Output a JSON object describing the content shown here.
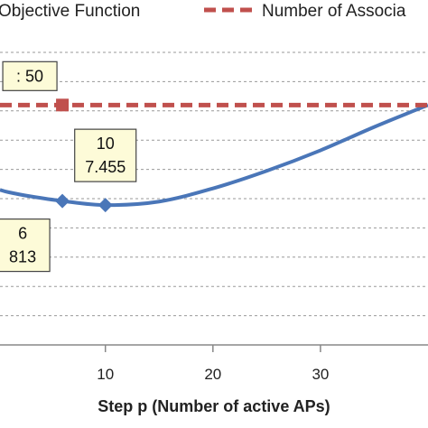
{
  "chart_data": {
    "type": "line",
    "xlabel": "Step p (Number of active APs)",
    "xticks": [
      "10",
      "20",
      "30"
    ],
    "xlim": [
      0.2,
      40
    ],
    "ylim": [
      0,
      10
    ],
    "grid": true,
    "legend_position": "top",
    "series": [
      {
        "name": "Objective Function",
        "color": "#4a76b8",
        "style": "solid",
        "x": [
          0.2,
          1,
          3,
          6,
          10,
          15,
          20,
          25,
          30,
          35,
          40
        ],
        "y": [
          5.3,
          5.22,
          5.08,
          4.92,
          4.78,
          4.9,
          5.35,
          5.95,
          6.65,
          7.45,
          8.2
        ],
        "markers_at": [
          6,
          10
        ]
      },
      {
        "name": "Number of Associa",
        "color": "#c0504d",
        "style": "dashed",
        "x": [
          0.2,
          40
        ],
        "y": [
          8.2,
          8.2
        ],
        "markers_at": [
          6
        ]
      }
    ],
    "annotations": [
      {
        "lines": [
          "10",
          "7.455"
        ],
        "x": 10,
        "y": 4.78,
        "series": 0
      },
      {
        "lines": [
          "6",
          "813"
        ],
        "x": 6,
        "y": 4.92,
        "series": 0
      },
      {
        "lines": [
          ": 50"
        ],
        "x": 6,
        "y": 8.2,
        "series": 1
      }
    ]
  }
}
